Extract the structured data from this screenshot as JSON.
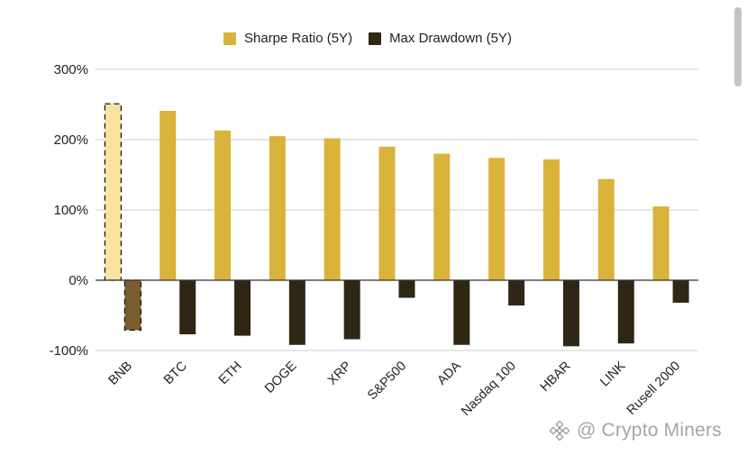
{
  "legend": {
    "position": "top-center",
    "items": [
      {
        "label": "Sharpe Ratio (5Y)",
        "color": "#d9b33a"
      },
      {
        "label": "Max Drawdown (5Y)",
        "color": "#2f2616"
      }
    ]
  },
  "watermark": {
    "text": "@ Crypto Miners",
    "icon": "binance-square-logo-icon"
  },
  "chart_data": {
    "type": "bar",
    "title": "",
    "xlabel": "",
    "ylabel": "",
    "ylim": [
      -100,
      300
    ],
    "y_ticks": [
      {
        "value": 300,
        "label": "300%"
      },
      {
        "value": 200,
        "label": "200%"
      },
      {
        "value": 100,
        "label": "100%"
      },
      {
        "value": 0,
        "label": "0%"
      },
      {
        "value": -100,
        "label": "-100%"
      }
    ],
    "grid": true,
    "legend_position": "top",
    "categories": [
      "BNB",
      "BTC",
      "ETH",
      "DOGE",
      "XRP",
      "S&P500",
      "ADA",
      "Nasdaq 100",
      "HBAR",
      "LINK",
      "Rusell 2000"
    ],
    "series": [
      {
        "name": "Sharpe Ratio (5Y)",
        "color": "#d9b33a",
        "highlight_color": "#f8e3a0",
        "values": [
          251,
          241,
          213,
          205,
          202,
          190,
          180,
          174,
          172,
          144,
          105
        ]
      },
      {
        "name": "Max Drawdown (5Y)",
        "color": "#2f2616",
        "highlight_color": "#7a5c2e",
        "values": [
          -71,
          -77,
          -79,
          -92,
          -84,
          -25,
          -92,
          -36,
          -94,
          -90,
          -32
        ]
      }
    ],
    "highlighted_category": "BNB",
    "colors": {
      "grid": "#cccccc",
      "zero_line": "#333333",
      "text": "#222222"
    }
  }
}
